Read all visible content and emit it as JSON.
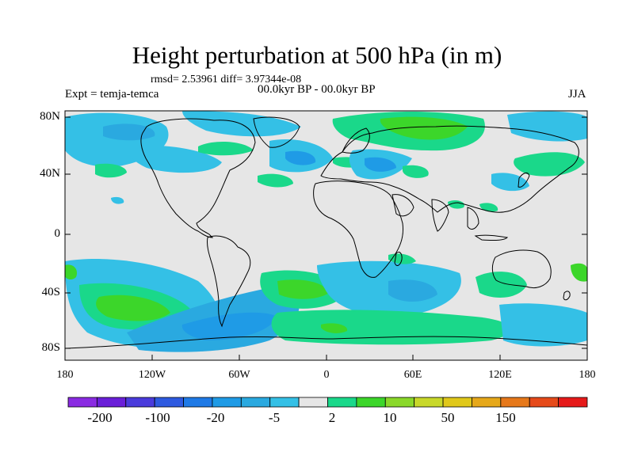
{
  "title": "Height perturbation at 500 hPa (in m)",
  "stats": "rmsd= 2.53961  diff= 3.97344e-08",
  "experiment": "Expt = temja-temca",
  "period": "00.0kyr BP - 00.0kyr BP",
  "season": "JJA",
  "lat_labels": [
    "80N",
    "40N",
    "0",
    "40S",
    "80S"
  ],
  "lon_labels": [
    "180",
    "120W",
    "60W",
    "0",
    "60E",
    "120E",
    "180"
  ],
  "colorbar": {
    "colors": [
      "#8a2be2",
      "#6a1fd8",
      "#4a3bdc",
      "#2e5ae0",
      "#1f7ae6",
      "#1f9be6",
      "#2aa9e0",
      "#34c0e6",
      "#e6e6e6",
      "#1ad88a",
      "#3cd62a",
      "#8ad82a",
      "#c8d82a",
      "#e0c81a",
      "#e6a81a",
      "#e6781a",
      "#e64a1a",
      "#e61a1a"
    ],
    "labels": [
      "-200",
      "-100",
      "-20",
      "-5",
      "2",
      "10",
      "50",
      "150"
    ]
  },
  "palette": {
    "background": "#e6e6e6",
    "light_blue": "#34c0e6",
    "blue": "#2aa9e0",
    "dark_blue": "#1f9be6",
    "light_green": "#1ad88a",
    "green": "#3cd62a"
  }
}
